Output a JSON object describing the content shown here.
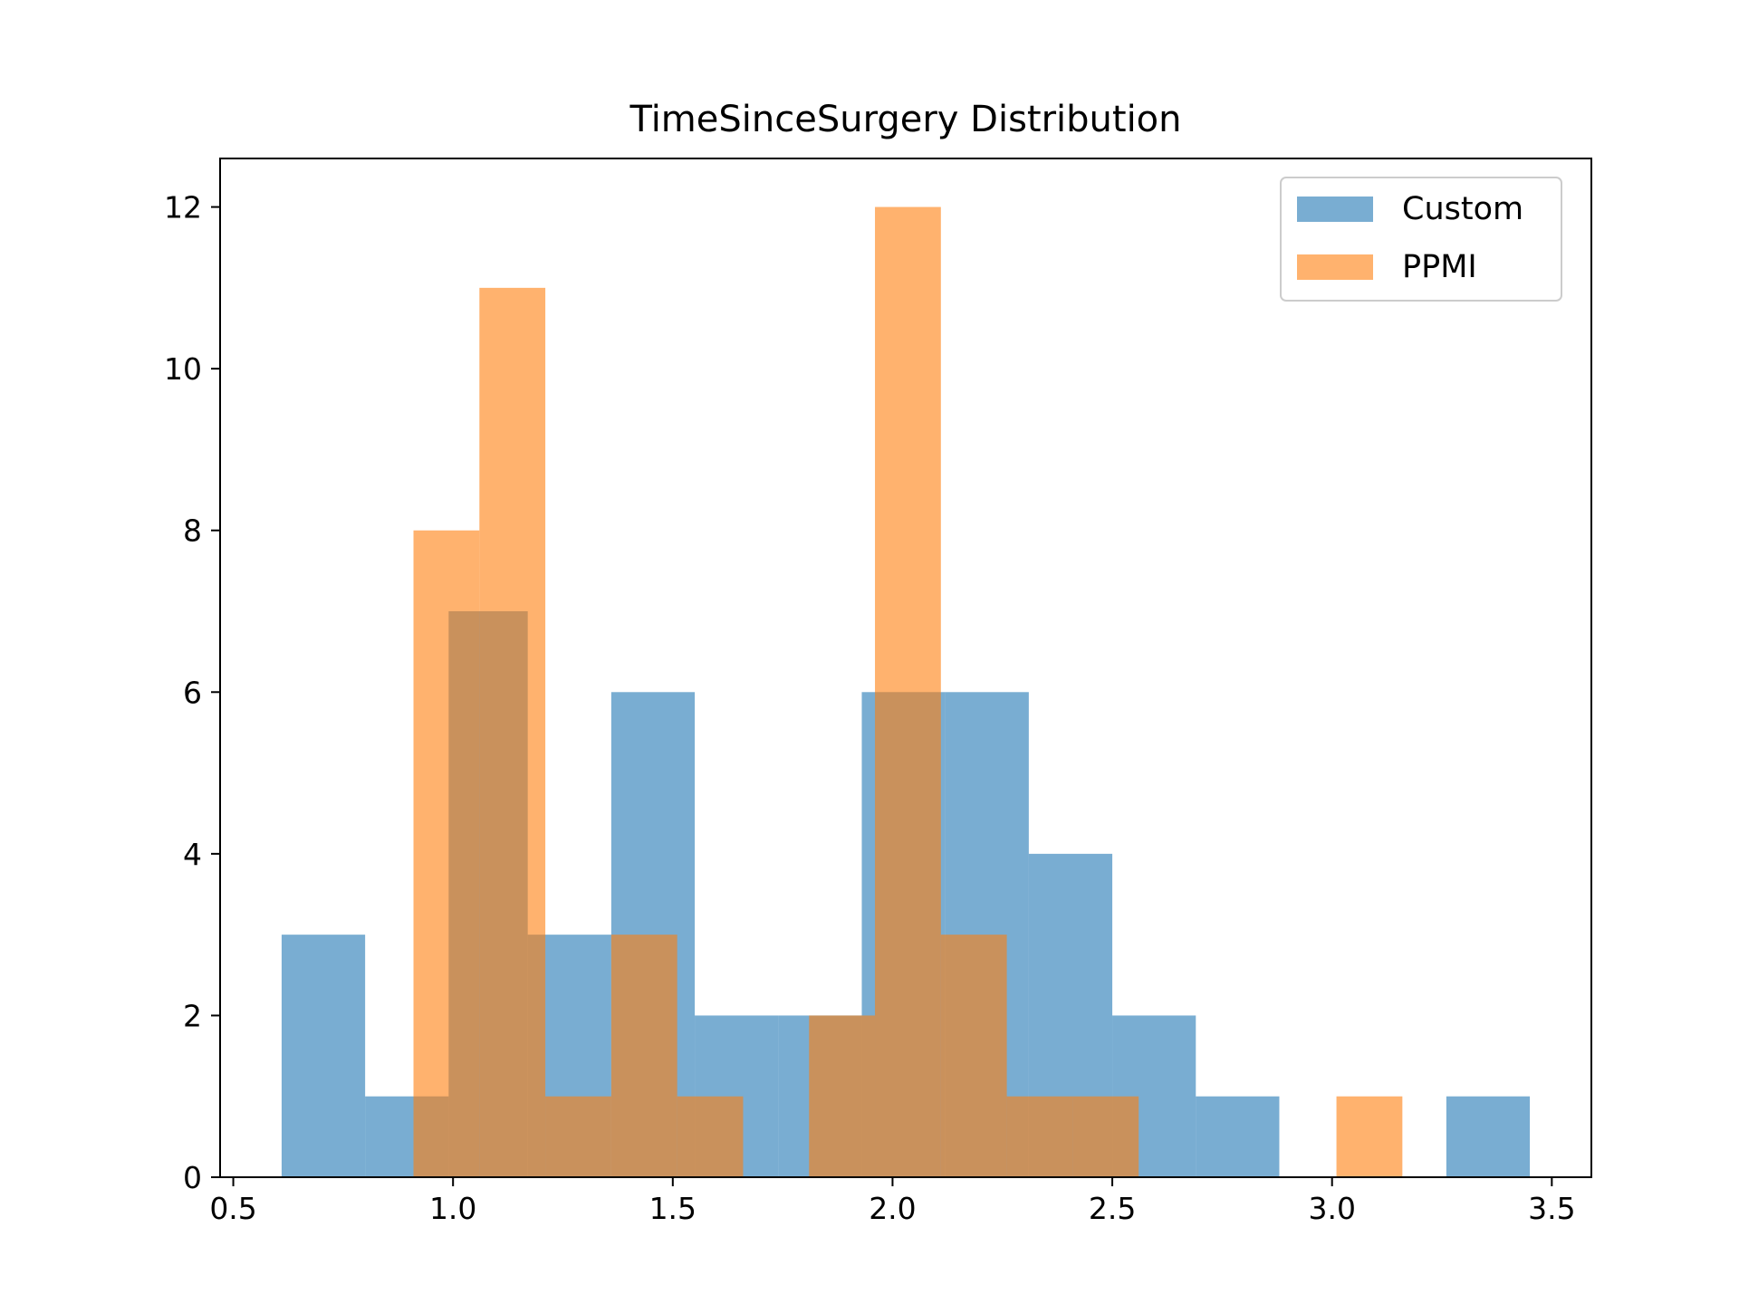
{
  "chart_data": {
    "type": "histogram",
    "title": "TimeSinceSurgery Distribution",
    "xlabel": "",
    "ylabel": "",
    "xlim": [
      0.47,
      3.59
    ],
    "ylim": [
      0,
      12.6
    ],
    "x_ticks": [
      0.5,
      1.0,
      1.5,
      2.0,
      2.5,
      3.0,
      3.5
    ],
    "x_tick_labels": [
      "0.5",
      "1.0",
      "1.5",
      "2.0",
      "2.5",
      "3.0",
      "3.5"
    ],
    "y_ticks": [
      0,
      2,
      4,
      6,
      8,
      10,
      12
    ],
    "y_tick_labels": [
      "0",
      "2",
      "4",
      "6",
      "8",
      "10",
      "12"
    ],
    "grid": false,
    "legend_position": "top-right",
    "series": [
      {
        "name": "Custom",
        "color": "#1f77b4",
        "opacity": 0.6,
        "bins": [
          {
            "x0": 0.61,
            "x1": 0.8,
            "count": 3
          },
          {
            "x0": 0.8,
            "x1": 0.99,
            "count": 1
          },
          {
            "x0": 0.99,
            "x1": 1.17,
            "count": 7
          },
          {
            "x0": 1.17,
            "x1": 1.36,
            "count": 3
          },
          {
            "x0": 1.36,
            "x1": 1.55,
            "count": 6
          },
          {
            "x0": 1.55,
            "x1": 1.74,
            "count": 2
          },
          {
            "x0": 1.74,
            "x1": 1.93,
            "count": 2
          },
          {
            "x0": 1.93,
            "x1": 2.12,
            "count": 6
          },
          {
            "x0": 2.12,
            "x1": 2.31,
            "count": 6
          },
          {
            "x0": 2.31,
            "x1": 2.5,
            "count": 4
          },
          {
            "x0": 2.5,
            "x1": 2.69,
            "count": 2
          },
          {
            "x0": 2.69,
            "x1": 2.88,
            "count": 1
          },
          {
            "x0": 2.88,
            "x1": 3.07,
            "count": 0
          },
          {
            "x0": 3.07,
            "x1": 3.26,
            "count": 0
          },
          {
            "x0": 3.26,
            "x1": 3.45,
            "count": 1
          }
        ]
      },
      {
        "name": "PPMI",
        "color": "#ff7f0e",
        "opacity": 0.6,
        "bins": [
          {
            "x0": 0.91,
            "x1": 1.06,
            "count": 8
          },
          {
            "x0": 1.06,
            "x1": 1.21,
            "count": 11
          },
          {
            "x0": 1.21,
            "x1": 1.36,
            "count": 1
          },
          {
            "x0": 1.36,
            "x1": 1.51,
            "count": 3
          },
          {
            "x0": 1.51,
            "x1": 1.66,
            "count": 1
          },
          {
            "x0": 1.66,
            "x1": 1.81,
            "count": 0
          },
          {
            "x0": 1.81,
            "x1": 1.96,
            "count": 2
          },
          {
            "x0": 1.96,
            "x1": 2.11,
            "count": 12
          },
          {
            "x0": 2.11,
            "x1": 2.26,
            "count": 3
          },
          {
            "x0": 2.26,
            "x1": 2.41,
            "count": 1
          },
          {
            "x0": 2.41,
            "x1": 2.56,
            "count": 1
          },
          {
            "x0": 2.56,
            "x1": 2.71,
            "count": 0
          },
          {
            "x0": 2.71,
            "x1": 2.86,
            "count": 0
          },
          {
            "x0": 2.86,
            "x1": 3.01,
            "count": 0
          },
          {
            "x0": 3.01,
            "x1": 3.16,
            "count": 1
          }
        ]
      }
    ]
  }
}
